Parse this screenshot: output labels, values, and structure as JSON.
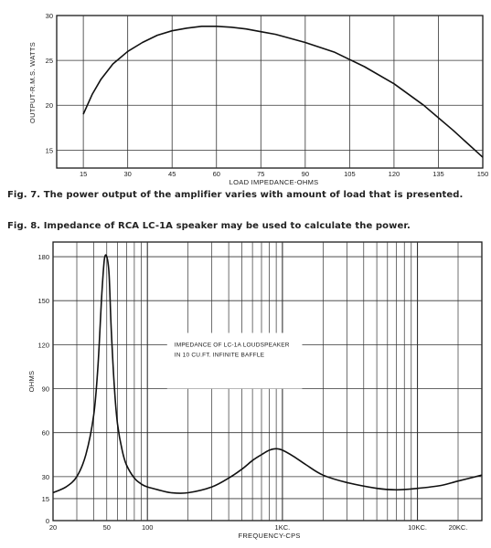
{
  "chart_data": [
    {
      "type": "line",
      "xlabel": "LOAD IMPEDANCE-OHMS",
      "ylabel": "OUTPUT-R.M.S. WATTS",
      "xlim": [
        6,
        150
      ],
      "ylim": [
        13,
        30
      ],
      "xticks": [
        15,
        30,
        45,
        60,
        75,
        90,
        105,
        120,
        135,
        150
      ],
      "yticks": [
        15,
        20,
        25,
        30
      ],
      "grid": true,
      "series": [
        {
          "x": [
            15,
            18,
            21,
            25,
            30,
            35,
            40,
            45,
            50,
            55,
            60,
            65,
            70,
            75,
            80,
            90,
            100,
            110,
            120,
            130,
            140,
            150
          ],
          "y": [
            19.0,
            21.2,
            22.9,
            24.6,
            26.0,
            27.0,
            27.8,
            28.3,
            28.6,
            28.8,
            28.8,
            28.7,
            28.5,
            28.2,
            27.9,
            27.0,
            25.9,
            24.3,
            22.4,
            20.0,
            17.2,
            14.2
          ]
        }
      ],
      "caption": "Fig. 7. The power output of the amplifier varies with amount of load that is presented."
    },
    {
      "type": "line",
      "xscale": "log",
      "xlabel": "FREQUENCY-CPS",
      "ylabel": "OHMS",
      "xlim": [
        20,
        30000
      ],
      "ylim": [
        0,
        190
      ],
      "xticks": [
        {
          "value": 20,
          "label": "20"
        },
        {
          "value": 50,
          "label": "50"
        },
        {
          "value": 100,
          "label": "100"
        },
        {
          "value": 1000,
          "label": "1KC."
        },
        {
          "value": 10000,
          "label": "10KC."
        },
        {
          "value": 20000,
          "label": "20KC."
        }
      ],
      "yticks": [
        0,
        15,
        30,
        60,
        90,
        120,
        150,
        180
      ],
      "grid": true,
      "annotation": [
        "IMPEDANCE OF LC-1A LOUDSPEAKER",
        "IN 10 CU.FT. INFINITE BAFFLE"
      ],
      "series": [
        {
          "x": [
            20,
            25,
            30,
            35,
            40,
            43,
            46,
            48,
            50,
            52,
            54,
            57,
            60,
            65,
            70,
            80,
            90,
            100,
            120,
            150,
            200,
            300,
            400,
            500,
            600,
            700,
            800,
            900,
            1000,
            1200,
            1500,
            2000,
            3000,
            5000,
            7000,
            10000,
            15000,
            20000,
            30000
          ],
          "y": [
            19,
            23,
            30,
            45,
            72,
            105,
            155,
            178,
            180,
            168,
            130,
            90,
            66,
            48,
            38,
            29,
            25,
            23,
            21,
            19,
            19,
            23,
            29,
            35,
            41,
            45,
            48,
            49,
            48,
            44,
            38,
            31,
            26,
            22,
            21,
            22,
            24,
            27,
            31
          ]
        }
      ],
      "caption": "Fig. 8. Impedance of RCA LC-1A speaker may be used to calculate the power."
    }
  ]
}
